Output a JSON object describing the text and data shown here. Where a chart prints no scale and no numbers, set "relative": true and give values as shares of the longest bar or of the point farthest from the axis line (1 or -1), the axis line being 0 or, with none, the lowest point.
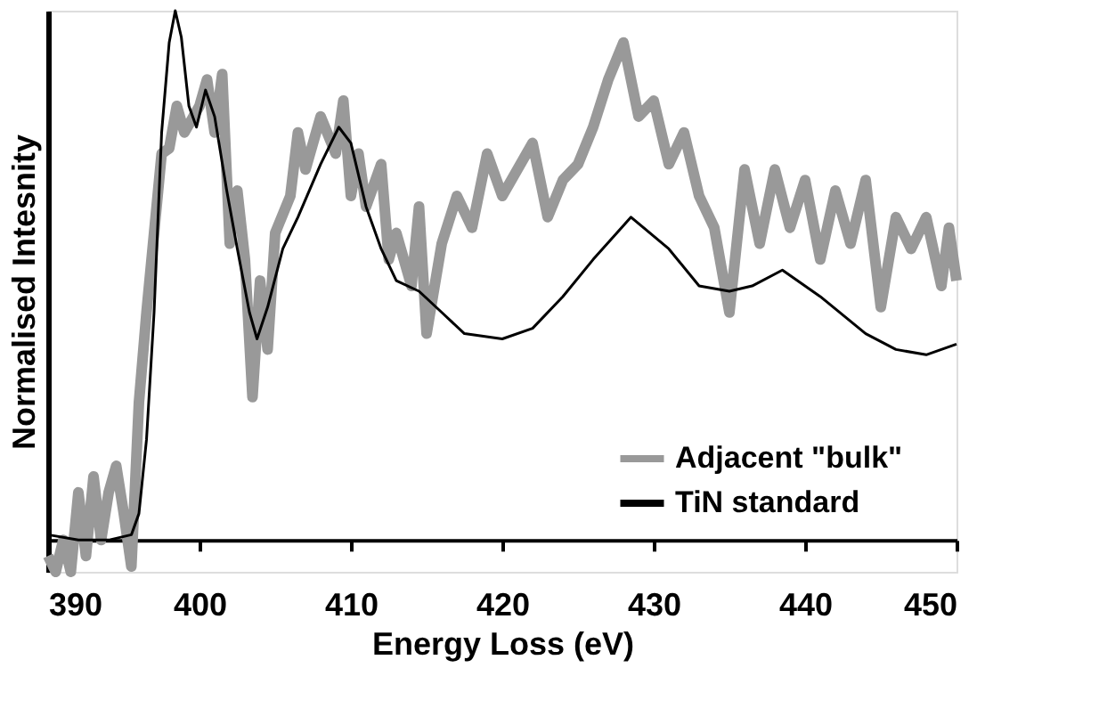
{
  "chart_data": {
    "type": "line",
    "relative": true,
    "xlabel": "Energy Loss (eV)",
    "ylabel": "Normalised Intesnity",
    "xlim": [
      390,
      450
    ],
    "xticks": [
      390,
      400,
      410,
      420,
      430,
      440,
      450
    ],
    "grid": false,
    "legend": "bottom right",
    "marker": "none",
    "line_style": "solid",
    "series": [
      {
        "name": "Adjacent \"bulk\"",
        "color": "#999999",
        "x": [
          390,
          390.5,
          391,
          391.5,
          392,
          392.5,
          393,
          393.5,
          394,
          394.5,
          395,
          395.5,
          396,
          396.5,
          397,
          397.5,
          398,
          398.5,
          399,
          400,
          400.5,
          401,
          401.5,
          402,
          402.5,
          403,
          403.5,
          404,
          404.5,
          405,
          406,
          406.5,
          407,
          408,
          409,
          409.5,
          410,
          410.5,
          411,
          412,
          412.5,
          413,
          414,
          414.5,
          415,
          416,
          417,
          418,
          419,
          420,
          421,
          422,
          423,
          424,
          425,
          426,
          427,
          428,
          429,
          430,
          431,
          432,
          433,
          434,
          435,
          436,
          437,
          438,
          439,
          440,
          441,
          442,
          443,
          444,
          445,
          446,
          447,
          448,
          449,
          449.5,
          450
        ],
        "values": [
          -0.03,
          -0.06,
          0,
          -0.06,
          0.09,
          -0.03,
          0.12,
          0,
          0.09,
          0.14,
          0.05,
          -0.05,
          0.26,
          0.43,
          0.58,
          0.73,
          0.74,
          0.82,
          0.77,
          0.82,
          0.87,
          0.77,
          0.88,
          0.56,
          0.66,
          0.53,
          0.27,
          0.49,
          0.36,
          0.58,
          0.65,
          0.77,
          0.7,
          0.8,
          0.73,
          0.83,
          0.65,
          0.73,
          0.63,
          0.71,
          0.53,
          0.58,
          0.48,
          0.63,
          0.39,
          0.56,
          0.65,
          0.59,
          0.73,
          0.65,
          0.7,
          0.75,
          0.61,
          0.68,
          0.71,
          0.78,
          0.87,
          0.94,
          0.8,
          0.83,
          0.71,
          0.77,
          0.65,
          0.59,
          0.43,
          0.7,
          0.56,
          0.7,
          0.59,
          0.68,
          0.53,
          0.66,
          0.56,
          0.68,
          0.44,
          0.61,
          0.55,
          0.61,
          0.48,
          0.59,
          0.49
        ]
      },
      {
        "name": "TiN standard",
        "color": "#000000",
        "x": [
          390,
          392,
          394,
          395.5,
          396,
          396.5,
          397,
          397.5,
          398,
          398.4,
          398.8,
          399.3,
          399.8,
          400.4,
          401,
          401.8,
          402.5,
          403.3,
          403.8,
          404.5,
          405.5,
          406.5,
          408,
          409.2,
          410,
          411,
          412,
          413,
          414.5,
          416,
          417.5,
          420,
          422,
          424,
          426,
          428.5,
          431,
          433,
          435,
          436.5,
          438.5,
          441,
          444,
          446,
          448,
          450
        ],
        "values": [
          0.01,
          0,
          0,
          0.01,
          0.05,
          0.19,
          0.43,
          0.77,
          0.94,
          1,
          0.95,
          0.82,
          0.78,
          0.85,
          0.8,
          0.66,
          0.55,
          0.43,
          0.38,
          0.44,
          0.55,
          0.61,
          0.71,
          0.78,
          0.75,
          0.63,
          0.55,
          0.49,
          0.47,
          0.43,
          0.39,
          0.38,
          0.4,
          0.46,
          0.53,
          0.61,
          0.55,
          0.48,
          0.47,
          0.48,
          0.51,
          0.46,
          0.39,
          0.36,
          0.35,
          0.37
        ]
      }
    ]
  }
}
